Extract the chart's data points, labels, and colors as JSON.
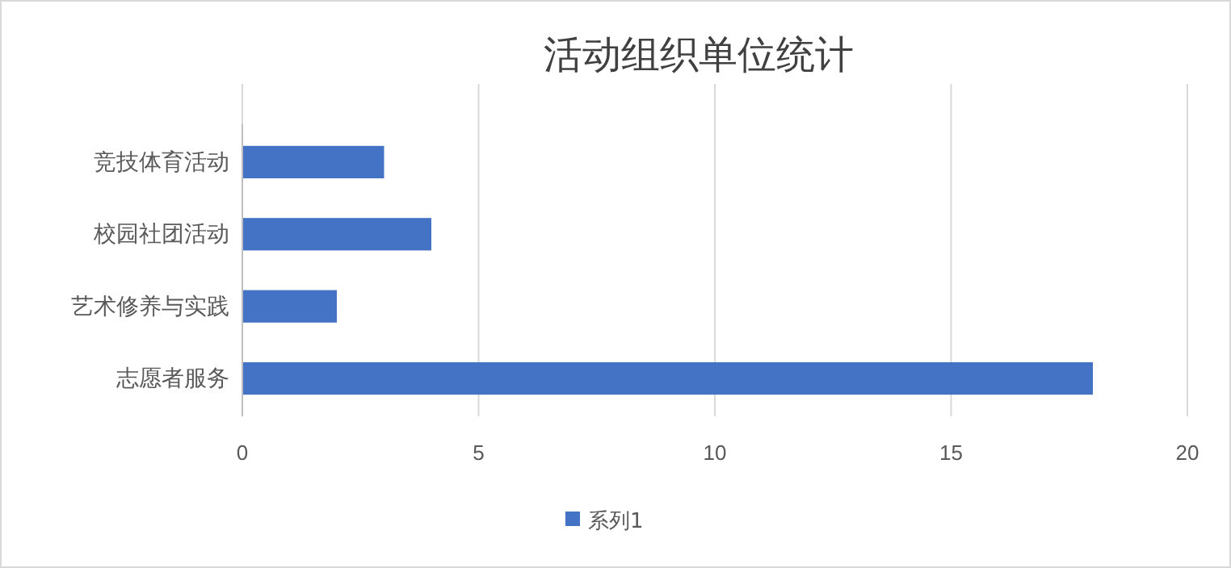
{
  "chart_data": {
    "type": "bar",
    "orientation": "horizontal",
    "title": "活动组织单位统计",
    "categories": [
      "竞技体育活动",
      "校园社团活动",
      "艺术修养与实践",
      "志愿者服务"
    ],
    "series": [
      {
        "name": "系列1",
        "color": "#4472c4",
        "values": [
          3,
          4,
          2,
          18
        ]
      }
    ],
    "xlim": [
      0,
      20
    ],
    "xticks": [
      0,
      5,
      10,
      15,
      20
    ],
    "grid": "x",
    "legend": "bottom"
  }
}
